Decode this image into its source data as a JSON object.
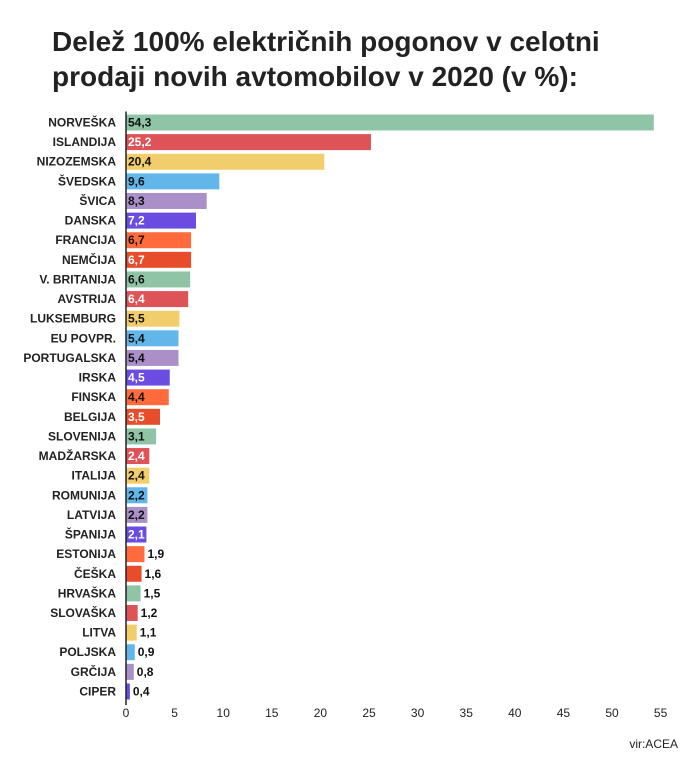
{
  "chart_data": {
    "type": "bar",
    "orientation": "horizontal",
    "title": "Delež 100% električnih pogonov v celotni prodaji novih avtomobilov v 2020 (v %):",
    "xlabel": "",
    "ylabel": "",
    "xlim": [
      0,
      55
    ],
    "x_ticks": [
      "0",
      "5",
      "10",
      "15",
      "20",
      "25",
      "30",
      "35",
      "40",
      "45",
      "50",
      "55"
    ],
    "grid": false,
    "categories": [
      "NORVEŠKA",
      "ISLANDIJA",
      "NIZOZEMSKA",
      "ŠVEDSKA",
      "ŠVICA",
      "DANSKA",
      "FRANCIJA",
      "NEMČIJA",
      "V. BRITANIJA",
      "AVSTRIJA",
      "LUKSEMBURG",
      "EU POVPR.",
      "PORTUGALSKA",
      "IRSKA",
      "FINSKA",
      "BELGIJA",
      "SLOVENIJA",
      "MADŽARSKA",
      "ITALIJA",
      "ROMUNIJA",
      "LATVIJA",
      "ŠPANIJA",
      "ESTONIJA",
      "ČEŠKA",
      "HRVAŠKA",
      "SLOVAŠKA",
      "LITVA",
      "POLJSKA",
      "GRČIJA",
      "CIPER"
    ],
    "values": [
      54.3,
      25.2,
      20.4,
      9.6,
      8.3,
      7.2,
      6.7,
      6.7,
      6.6,
      6.4,
      5.5,
      5.4,
      5.4,
      4.5,
      4.4,
      3.5,
      3.1,
      2.4,
      2.4,
      2.2,
      2.2,
      2.1,
      1.9,
      1.6,
      1.5,
      1.2,
      1.1,
      0.9,
      0.8,
      0.4
    ],
    "value_labels": [
      "54,3",
      "25,2",
      "20,4",
      "9,6",
      "8,3",
      "7,2",
      "6,7",
      "6,7",
      "6,6",
      "6,4",
      "5,5",
      "5,4",
      "5,4",
      "4,5",
      "4,4",
      "3,5",
      "3,1",
      "2,4",
      "2,4",
      "2,2",
      "2,2",
      "2,1",
      "1,9",
      "1,6",
      "1,5",
      "1,2",
      "1,1",
      "0,9",
      "0,8",
      "0,4"
    ],
    "palette": [
      "#8fc5a6",
      "#de5358",
      "#f1cd6b",
      "#63b6ea",
      "#aa8fc8",
      "#6b4ce0",
      "#ff6b3d",
      "#e84d2b"
    ],
    "label_colors": [
      "#111111",
      "#ffffff",
      "#111111",
      "#111111",
      "#111111",
      "#ffffff",
      "#111111",
      "#ffffff"
    ]
  },
  "source": "vir:ACEA"
}
